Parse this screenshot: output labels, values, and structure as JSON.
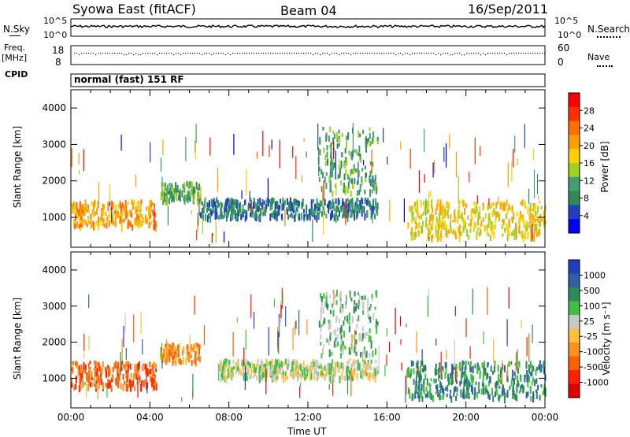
{
  "header": {
    "station": "Syowa East (fitACF)",
    "beam": "Beam 04",
    "date": "16/Sep/2011"
  },
  "strip_labels": {
    "nsky": "N.Sky",
    "nsky_hi": "10^5",
    "nsky_lo": "10^0",
    "nsearch": "N.Search",
    "nsearch_hi": "10^5",
    "nsearch_lo": "10^0",
    "freq": "Freq.",
    "freq_unit": "[MHz]",
    "freq_hi": "18",
    "freq_lo": "8",
    "nave": "Nave",
    "nave_hi": "60",
    "nave_lo": "0",
    "cpid": "CPID",
    "cpid_text": "normal (fast) 151 RF"
  },
  "colors": {
    "power": [
      "#0000ff",
      "#2040c0",
      "#2e8b57",
      "#40a070",
      "#a0d020",
      "#ffd000",
      "#ffa000",
      "#ff7000",
      "#ff3000",
      "#ff0000"
    ],
    "velocity": [
      "#1f3fbf",
      "#3060a0",
      "#2e8b57",
      "#40c040",
      "#c8c8c8",
      "#ffc040",
      "#ff9020",
      "#ff6000",
      "#ff2000",
      "#e00000"
    ]
  },
  "chart_data": [
    {
      "type": "heatmap",
      "name": "Power",
      "ylabel": "Slant Range [km]",
      "xlabel": "",
      "ylim": [
        180,
        4500
      ],
      "yticks": [
        "1000",
        "2000",
        "3000",
        "4000"
      ],
      "xticks": [
        "00:00",
        "04:00",
        "08:00",
        "12:00",
        "16:00",
        "20:00",
        "00:00"
      ],
      "colorbar_label": "Power [dB]",
      "colorbar_ticks": [
        "4",
        "8",
        "12",
        "16",
        "20",
        "24",
        "28"
      ],
      "bands": [
        {
          "t0": 0.0,
          "t1": 4.3,
          "r0": 800,
          "r1": 1500,
          "level": 6
        },
        {
          "t0": 4.5,
          "t1": 6.5,
          "r0": 1500,
          "r1": 2000,
          "level": 3
        },
        {
          "t0": 6.5,
          "t1": 15.5,
          "r0": 1050,
          "r1": 1550,
          "level": 2
        },
        {
          "t0": 12.5,
          "t1": 15.5,
          "r0": 1700,
          "r1": 3500,
          "level": 3
        },
        {
          "t0": 17.0,
          "t1": 24.0,
          "r0": 500,
          "r1": 1500,
          "level": 5
        }
      ]
    },
    {
      "type": "heatmap",
      "name": "Velocity",
      "ylabel": "Slant Range [km]",
      "xlabel": "Time UT",
      "ylim": [
        180,
        4500
      ],
      "yticks": [
        "1000",
        "2000",
        "3000",
        "4000"
      ],
      "xticks": [
        "00:00",
        "04:00",
        "08:00",
        "12:00",
        "16:00",
        "20:00",
        "00:00"
      ],
      "colorbar_label": "Velocity [m s⁻¹]",
      "colorbar_ticks": [
        "1000",
        "500",
        "100",
        "25",
        "-25",
        "-100",
        "-500",
        "-1000"
      ],
      "bands": [
        {
          "t0": 0.0,
          "t1": 4.3,
          "r0": 800,
          "r1": 1500,
          "level": 7
        },
        {
          "t0": 4.5,
          "t1": 6.5,
          "r0": 1500,
          "r1": 2000,
          "level": 6
        },
        {
          "t0": 7.5,
          "t1": 15.5,
          "r0": 1050,
          "r1": 1550,
          "level": 4
        },
        {
          "t0": 12.5,
          "t1": 15.5,
          "r0": 1700,
          "r1": 3500,
          "level": 3
        },
        {
          "t0": 17.0,
          "t1": 24.0,
          "r0": 500,
          "r1": 1500,
          "level": 2
        }
      ]
    }
  ]
}
